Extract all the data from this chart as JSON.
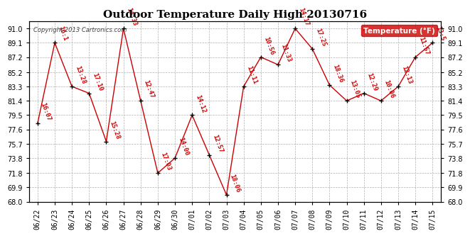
{
  "title": "Outdoor Temperature Daily High 20130716",
  "copyright": "Copyright 2013 Cartronics.com",
  "legend_label": "Temperature (°F)",
  "dates": [
    "06/22",
    "06/23",
    "06/24",
    "06/25",
    "06/26",
    "06/27",
    "06/28",
    "06/29",
    "06/30",
    "07/01",
    "07/02",
    "07/03",
    "07/04",
    "07/05",
    "07/06",
    "07/07",
    "07/08",
    "07/09",
    "07/10",
    "07/11",
    "07/12",
    "07/13",
    "07/14",
    "07/15"
  ],
  "temperatures": [
    78.4,
    89.1,
    83.3,
    82.4,
    76.0,
    91.0,
    81.4,
    71.8,
    73.8,
    79.5,
    74.2,
    68.9,
    83.3,
    87.2,
    86.2,
    91.0,
    88.3,
    83.5,
    81.4,
    82.4,
    81.4,
    83.3,
    87.2,
    89.1
  ],
  "point_labels": [
    "16:07",
    "16:1",
    "13:28",
    "17:10",
    "15:28",
    "14:33",
    "12:47",
    "17:03",
    "14:00",
    "14:12",
    "12:57",
    "18:06",
    "11:11",
    "10:56",
    "11:33",
    "14:17",
    "17:25",
    "18:36",
    "13:05",
    "12:29",
    "10:06",
    "12:13",
    "11:57",
    "13:5"
  ],
  "ylim_min": 68.0,
  "ylim_max": 92.0,
  "yticks": [
    68.0,
    69.9,
    71.8,
    73.8,
    75.7,
    77.6,
    79.5,
    81.4,
    83.3,
    85.2,
    87.2,
    89.1,
    91.0
  ],
  "line_color": "#cc0000",
  "point_color": "#000000",
  "bg_color": "#ffffff",
  "grid_color": "#b0b0b0",
  "title_fontsize": 11,
  "label_fontsize": 6.5,
  "legend_bg": "#cc0000",
  "legend_text_color": "#ffffff"
}
